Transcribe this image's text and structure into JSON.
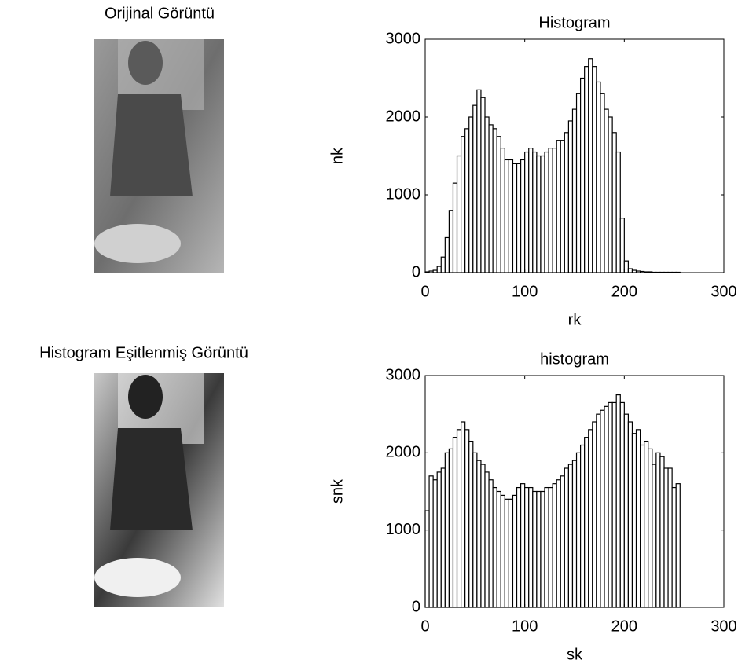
{
  "images": [
    {
      "title": "Orijinal Görüntü"
    },
    {
      "title": "Histogram Eşitlenmiş Görüntü"
    }
  ],
  "chart_data": [
    {
      "type": "histogram",
      "title": "Histogram",
      "x_label": "rk",
      "y_label": "nk",
      "bins": [
        0,
        4,
        8,
        12,
        16,
        20,
        24,
        28,
        32,
        36,
        40,
        44,
        48,
        52,
        56,
        60,
        64,
        68,
        72,
        76,
        80,
        84,
        88,
        92,
        96,
        100,
        104,
        108,
        112,
        116,
        120,
        124,
        128,
        132,
        136,
        140,
        144,
        148,
        152,
        156,
        160,
        164,
        168,
        172,
        176,
        180,
        184,
        188,
        192,
        196,
        200,
        204,
        208,
        212,
        216,
        220,
        224,
        228,
        232,
        236,
        240,
        244,
        248,
        252,
        256
      ],
      "values": [
        10,
        20,
        30,
        80,
        200,
        450,
        800,
        1150,
        1500,
        1750,
        1850,
        2000,
        2150,
        2350,
        2250,
        2000,
        1900,
        1850,
        1750,
        1600,
        1450,
        1450,
        1400,
        1400,
        1450,
        1550,
        1600,
        1550,
        1500,
        1500,
        1550,
        1600,
        1600,
        1700,
        1700,
        1800,
        1950,
        2100,
        2300,
        2500,
        2650,
        2750,
        2650,
        2450,
        2300,
        2100,
        2000,
        1800,
        1550,
        700,
        150,
        50,
        30,
        20,
        15,
        10,
        10,
        5,
        5,
        5,
        5,
        5,
        5,
        5
      ],
      "color": "#ffffff",
      "edge_color": "#000000",
      "xlim": [
        0,
        300
      ],
      "xticks": [
        0,
        100,
        200,
        300
      ],
      "ylim": [
        0,
        3000
      ],
      "yticks": [
        0,
        1000,
        2000,
        3000
      ]
    },
    {
      "type": "histogram",
      "title": "histogram",
      "x_label": "sk",
      "y_label": "snk",
      "bins": [
        0,
        4,
        8,
        12,
        16,
        20,
        24,
        28,
        32,
        36,
        40,
        44,
        48,
        52,
        56,
        60,
        64,
        68,
        72,
        76,
        80,
        84,
        88,
        92,
        96,
        100,
        104,
        108,
        112,
        116,
        120,
        124,
        128,
        132,
        136,
        140,
        144,
        148,
        152,
        156,
        160,
        164,
        168,
        172,
        176,
        180,
        184,
        188,
        192,
        196,
        200,
        204,
        208,
        212,
        216,
        220,
        224,
        228,
        232,
        236,
        240,
        244,
        248,
        252,
        256
      ],
      "values": [
        1250,
        1700,
        1650,
        1750,
        1800,
        2000,
        2050,
        2200,
        2300,
        2400,
        2300,
        2150,
        2000,
        1900,
        1850,
        1750,
        1650,
        1550,
        1500,
        1450,
        1400,
        1400,
        1450,
        1550,
        1600,
        1550,
        1550,
        1500,
        1500,
        1500,
        1550,
        1550,
        1600,
        1650,
        1700,
        1800,
        1850,
        1900,
        2000,
        2100,
        2200,
        2300,
        2400,
        2500,
        2550,
        2600,
        2650,
        2650,
        2750,
        2650,
        2500,
        2400,
        2250,
        2300,
        2100,
        2150,
        2050,
        1850,
        2000,
        1950,
        1800,
        1800,
        1550,
        1600
      ],
      "color": "#ffffff",
      "edge_color": "#000000",
      "xlim": [
        0,
        300
      ],
      "xticks": [
        0,
        100,
        200,
        300
      ],
      "ylim": [
        0,
        3000
      ],
      "yticks": [
        0,
        1000,
        2000,
        3000
      ]
    }
  ]
}
